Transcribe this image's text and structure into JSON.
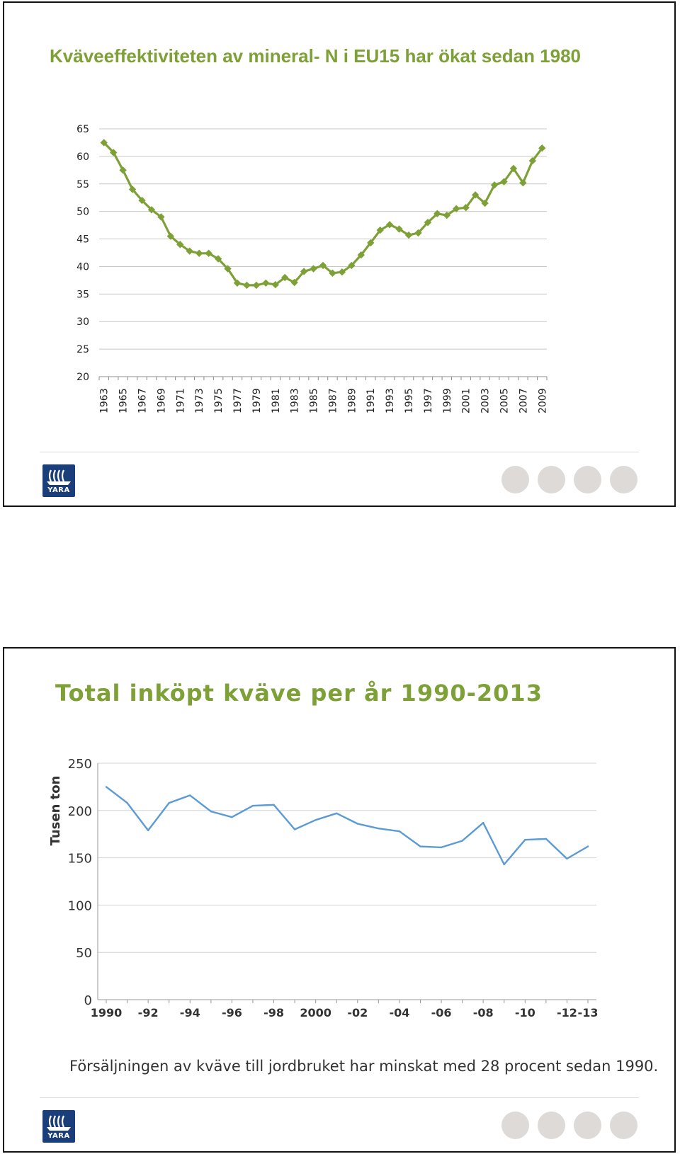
{
  "slides": [
    {
      "title": "Kväveeffektiviteten av mineral- N i EU15 har ökat sedan 1980",
      "logo_text": "YARA"
    },
    {
      "title": "Total inköpt kväve per år 1990-2013",
      "caption": "Försäljningen av kväve till jordbruket har minskat med 28 procent sedan 1990.",
      "logo_text": "YARA"
    }
  ],
  "colors": {
    "green": "#7da037",
    "blue": "#5b9bd5",
    "navy": "#1a3e7a"
  },
  "chart_data": [
    {
      "type": "line",
      "title": "",
      "xlabel": "",
      "ylabel": "",
      "ylim": [
        20,
        65
      ],
      "yticks": [
        20,
        25,
        30,
        35,
        40,
        45,
        50,
        55,
        60,
        65
      ],
      "grid": true,
      "marker": "diamond",
      "x": [
        1963,
        1964,
        1965,
        1966,
        1967,
        1968,
        1969,
        1970,
        1971,
        1972,
        1973,
        1974,
        1975,
        1976,
        1977,
        1978,
        1979,
        1980,
        1981,
        1982,
        1983,
        1984,
        1985,
        1986,
        1987,
        1988,
        1989,
        1990,
        1991,
        1992,
        1993,
        1994,
        1995,
        1996,
        1997,
        1998,
        1999,
        2000,
        2001,
        2002,
        2003,
        2004,
        2005,
        2006,
        2007,
        2008,
        2009
      ],
      "xticklabels": [
        "1963",
        "1965",
        "1967",
        "1969",
        "1971",
        "1973",
        "1975",
        "1977",
        "1979",
        "1981",
        "1983",
        "1985",
        "1987",
        "1989",
        "1991",
        "1993",
        "1995",
        "1997",
        "1999",
        "2001",
        "2003",
        "2005",
        "2007",
        "2009"
      ],
      "series": [
        {
          "values": [
            62.5,
            60.7,
            57.5,
            54.0,
            52.0,
            50.3,
            49.0,
            45.5,
            44.0,
            42.8,
            42.4,
            42.4,
            41.4,
            39.6,
            37.0,
            36.6,
            36.6,
            37.0,
            36.7,
            38.0,
            37.1,
            39.1,
            39.6,
            40.2,
            38.8,
            39.0,
            40.2,
            42.1,
            44.3,
            46.6,
            47.6,
            46.8,
            45.7,
            46.1,
            48.0,
            49.6,
            49.3,
            50.5,
            50.7,
            53.0,
            51.5,
            54.8,
            55.4,
            57.8,
            55.2,
            59.2,
            61.5
          ]
        }
      ]
    },
    {
      "type": "line",
      "title": "",
      "xlabel": "",
      "ylabel": "Tusen ton",
      "ylim": [
        0,
        250
      ],
      "yticks": [
        0,
        50,
        100,
        150,
        200,
        250
      ],
      "grid": true,
      "x": [
        1990,
        1991,
        1992,
        1993,
        1994,
        1995,
        1996,
        1997,
        1998,
        1999,
        2000,
        2001,
        2002,
        2003,
        2004,
        2005,
        2006,
        2007,
        2008,
        2009,
        2010,
        2011,
        2012,
        2013
      ],
      "xticklabels": [
        "1990",
        "-92",
        "-94",
        "-96",
        "-98",
        "2000",
        "-02",
        "-04",
        "-06",
        "-08",
        "-10",
        "-12",
        "-13"
      ],
      "xtickvalues": [
        1990,
        1992,
        1994,
        1996,
        1998,
        2000,
        2002,
        2004,
        2006,
        2008,
        2010,
        2012,
        2013
      ],
      "series": [
        {
          "values": [
            225,
            208,
            179,
            208,
            216,
            199,
            193,
            205,
            206,
            180,
            190,
            197,
            186,
            181,
            178,
            162,
            161,
            168,
            187,
            143,
            169,
            170,
            149,
            162
          ]
        }
      ]
    }
  ]
}
